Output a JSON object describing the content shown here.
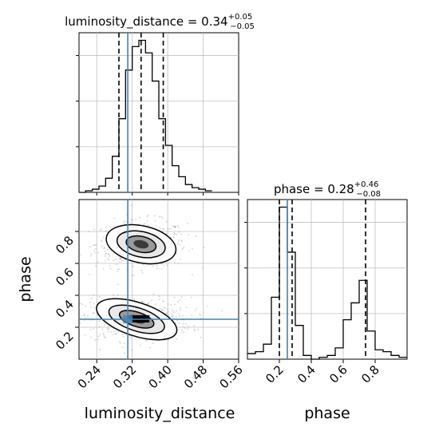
{
  "chart_data": [
    {
      "type": "histogram",
      "panel": "luminosity_distance marginal",
      "title_parts": {
        "label": "luminosity_distance = 0.34",
        "sup": "+0.05",
        "sub": "−0.05"
      },
      "xlim": [
        0.2,
        0.56
      ],
      "bin_edges": [
        0.2,
        0.215,
        0.23,
        0.245,
        0.26,
        0.275,
        0.29,
        0.305,
        0.32,
        0.335,
        0.35,
        0.365,
        0.38,
        0.395,
        0.41,
        0.425,
        0.44,
        0.455,
        0.47,
        0.485,
        0.5
      ],
      "counts": [
        0.0,
        0.01,
        0.02,
        0.04,
        0.09,
        0.23,
        0.47,
        0.78,
        0.93,
        0.97,
        0.89,
        0.71,
        0.47,
        0.3,
        0.17,
        0.1,
        0.05,
        0.03,
        0.02,
        0.01
      ],
      "quantiles": [
        0.29,
        0.34,
        0.39
      ],
      "truth": 0.31,
      "grid": true
    },
    {
      "type": "histogram",
      "panel": "phase marginal",
      "title_parts": {
        "label": "phase = 0.28",
        "sup": "+0.46",
        "sub": "−0.08"
      },
      "xlim": [
        0.0,
        1.0
      ],
      "bin_edges": [
        0.0,
        0.05,
        0.1,
        0.15,
        0.2,
        0.25,
        0.3,
        0.35,
        0.4,
        0.45,
        0.5,
        0.55,
        0.6,
        0.65,
        0.7,
        0.75,
        0.8,
        0.85,
        0.9,
        0.95,
        1.0
      ],
      "counts": [
        0.03,
        0.04,
        0.08,
        0.33,
        0.81,
        0.57,
        0.18,
        0.02,
        0.0,
        0.01,
        0.02,
        0.06,
        0.21,
        0.3,
        0.42,
        0.15,
        0.05,
        0.04,
        0.02,
        0.01
      ],
      "quantiles": [
        0.2,
        0.28,
        0.74
      ],
      "truth": 0.25,
      "grid": true,
      "xticks": [
        "0.2",
        "0.4",
        "0.6",
        "0.8"
      ],
      "xlabel": "phase"
    },
    {
      "type": "scatter_density",
      "panel": "luminosity_distance vs phase",
      "xlim": [
        0.2,
        0.56
      ],
      "ylim": [
        0.0,
        1.0
      ],
      "xticks": [
        "0.24",
        "0.32",
        "0.40",
        "0.48",
        "0.56"
      ],
      "yticks": [
        "0.2",
        "0.4",
        "0.6",
        "0.8"
      ],
      "xlabel": "luminosity_distance",
      "ylabel": "phase",
      "modes": [
        {
          "x": 0.34,
          "y": 0.72,
          "sx": 0.038,
          "sy": 0.055
        },
        {
          "x": 0.33,
          "y": 0.25,
          "sx": 0.045,
          "sy": 0.05
        }
      ],
      "truth": {
        "x": 0.31,
        "y": 0.25
      },
      "grid": true
    }
  ],
  "colors": {
    "truth": "#4682b4",
    "hist": "#000000",
    "quantile": "#000000",
    "grid": "#c0c0c0",
    "points": "#808080"
  }
}
